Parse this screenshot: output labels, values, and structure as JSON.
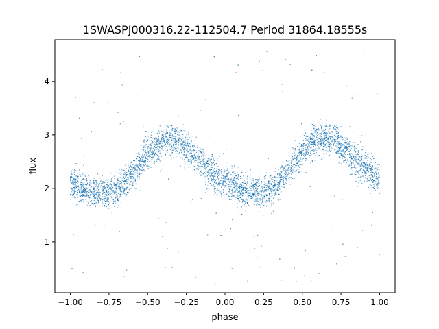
{
  "chart_data": {
    "type": "scatter",
    "title": "1SWASPJ000316.22-112504.7 Period 31864.18555s",
    "xlabel": "phase",
    "ylabel": "flux",
    "xlim": [
      -1.1,
      1.1
    ],
    "ylim": [
      0.05,
      4.78
    ],
    "x_ticks": [
      -1.0,
      -0.75,
      -0.5,
      -0.25,
      0.0,
      0.25,
      0.5,
      0.75,
      1.0
    ],
    "x_tick_labels": [
      "−1.00",
      "−0.75",
      "−0.50",
      "−0.25",
      "0.00",
      "0.25",
      "0.50",
      "0.75",
      "1.00"
    ],
    "y_ticks": [
      1,
      2,
      3,
      4
    ],
    "y_tick_labels": [
      "1",
      "2",
      "3",
      "4"
    ],
    "grid": false,
    "legend": "none",
    "point_color": "#1f77b4",
    "series": [
      {
        "x": [
          -1.0,
          -0.9,
          -0.8,
          -0.75,
          -0.7,
          -0.6,
          -0.5,
          -0.4,
          -0.35,
          -0.3,
          -0.2,
          -0.1,
          0.0,
          0.1,
          0.2,
          0.25,
          0.3,
          0.4,
          0.5,
          0.6,
          0.65,
          0.7,
          0.8,
          0.9,
          1.0
        ],
        "y": [
          2.1,
          1.98,
          1.92,
          1.92,
          1.98,
          2.25,
          2.65,
          2.88,
          2.92,
          2.88,
          2.62,
          2.32,
          2.1,
          1.96,
          1.92,
          1.93,
          2.0,
          2.3,
          2.68,
          2.92,
          2.95,
          2.9,
          2.65,
          2.4,
          2.15
        ],
        "scatter_sigma": 0.14,
        "outlier_range": [
          0.2,
          4.6
        ]
      }
    ]
  }
}
